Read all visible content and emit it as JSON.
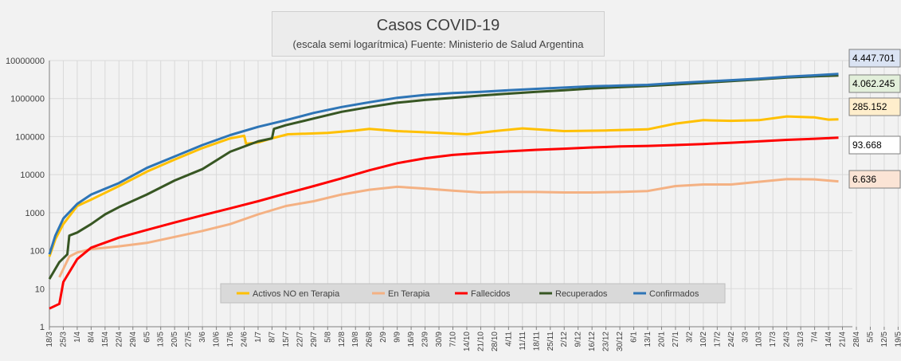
{
  "chart_data": {
    "type": "line",
    "title": "Casos COVID-19",
    "subtitle": "(escala semi logarítmica) Fuente: Ministerio de Salud Argentina",
    "yscale": "log",
    "ylim": [
      1,
      10000000
    ],
    "y_ticks": [
      "1",
      "10",
      "100",
      "1000",
      "10000",
      "100000",
      "1000000",
      "10000000"
    ],
    "x_ticks": [
      "18/3",
      "25/3",
      "1/4",
      "8/4",
      "15/4",
      "22/4",
      "29/4",
      "6/5",
      "13/5",
      "20/5",
      "27/5",
      "3/6",
      "10/6",
      "17/6",
      "24/6",
      "1/7",
      "8/7",
      "15/7",
      "22/7",
      "29/7",
      "5/8",
      "12/8",
      "19/8",
      "26/8",
      "2/9",
      "9/9",
      "16/9",
      "23/9",
      "30/9",
      "7/10",
      "14/10",
      "21/10",
      "28/10",
      "4/11",
      "11/11",
      "18/11",
      "25/11",
      "2/12",
      "9/12",
      "16/12",
      "23/12",
      "30/12",
      "6/1",
      "13/1",
      "20/1",
      "27/1",
      "3/2",
      "10/2",
      "17/2",
      "24/2",
      "3/3",
      "10/3",
      "17/3",
      "24/3",
      "31/3",
      "7/4",
      "14/4",
      "21/4",
      "28/4",
      "5/5",
      "12/5",
      "19/5",
      "26/5",
      "2/6",
      "9/6",
      "16/6",
      "23/6"
    ],
    "grid": true,
    "legend_position": "bottom-center",
    "series": [
      {
        "name": "Activos NO en Terapia",
        "color": "#ffc000",
        "last_label": "285.152",
        "label_bg": "#ffeecc",
        "points": [
          [
            0,
            70
          ],
          [
            3,
            200
          ],
          [
            7,
            500
          ],
          [
            14,
            1500
          ],
          [
            21,
            2200
          ],
          [
            35,
            5000
          ],
          [
            49,
            12000
          ],
          [
            63,
            25000
          ],
          [
            77,
            50000
          ],
          [
            91,
            90000
          ],
          [
            98,
            105000
          ],
          [
            99,
            65000
          ],
          [
            105,
            70000
          ],
          [
            112,
            90000
          ],
          [
            120,
            115000
          ],
          [
            140,
            125000
          ],
          [
            154,
            145000
          ],
          [
            161,
            160000
          ],
          [
            175,
            140000
          ],
          [
            196,
            125000
          ],
          [
            210,
            115000
          ],
          [
            224,
            140000
          ],
          [
            238,
            165000
          ],
          [
            259,
            140000
          ],
          [
            280,
            145000
          ],
          [
            301,
            155000
          ],
          [
            315,
            220000
          ],
          [
            329,
            270000
          ],
          [
            343,
            260000
          ],
          [
            357,
            270000
          ],
          [
            371,
            340000
          ],
          [
            385,
            320000
          ],
          [
            392,
            280000
          ],
          [
            397,
            285152
          ]
        ]
      },
      {
        "name": "En Terapia",
        "color": "#f4b183",
        "last_label": "6.636",
        "label_bg": "#fbe4d5",
        "points": [
          [
            5,
            20
          ],
          [
            10,
            70
          ],
          [
            14,
            90
          ],
          [
            21,
            110
          ],
          [
            35,
            130
          ],
          [
            49,
            160
          ],
          [
            63,
            230
          ],
          [
            77,
            330
          ],
          [
            91,
            500
          ],
          [
            105,
            900
          ],
          [
            119,
            1500
          ],
          [
            133,
            2000
          ],
          [
            147,
            3000
          ],
          [
            161,
            4000
          ],
          [
            175,
            4800
          ],
          [
            189,
            4300
          ],
          [
            203,
            3800
          ],
          [
            217,
            3400
          ],
          [
            231,
            3500
          ],
          [
            245,
            3500
          ],
          [
            259,
            3400
          ],
          [
            273,
            3400
          ],
          [
            287,
            3500
          ],
          [
            301,
            3700
          ],
          [
            315,
            5000
          ],
          [
            329,
            5500
          ],
          [
            343,
            5500
          ],
          [
            357,
            6500
          ],
          [
            371,
            7600
          ],
          [
            385,
            7500
          ],
          [
            397,
            6636
          ]
        ]
      },
      {
        "name": "Fallecidos",
        "color": "#ff0000",
        "last_label": "93.668",
        "label_bg": "#ffffff",
        "points": [
          [
            0,
            3
          ],
          [
            5,
            4
          ],
          [
            7,
            15
          ],
          [
            14,
            60
          ],
          [
            21,
            120
          ],
          [
            35,
            220
          ],
          [
            49,
            350
          ],
          [
            63,
            550
          ],
          [
            77,
            850
          ],
          [
            91,
            1300
          ],
          [
            105,
            2000
          ],
          [
            119,
            3200
          ],
          [
            133,
            5000
          ],
          [
            147,
            8000
          ],
          [
            161,
            13000
          ],
          [
            175,
            20000
          ],
          [
            189,
            27000
          ],
          [
            203,
            33000
          ],
          [
            217,
            37000
          ],
          [
            231,
            41000
          ],
          [
            245,
            45000
          ],
          [
            259,
            48000
          ],
          [
            273,
            52000
          ],
          [
            287,
            55000
          ],
          [
            301,
            57000
          ],
          [
            315,
            60000
          ],
          [
            329,
            64000
          ],
          [
            343,
            69000
          ],
          [
            357,
            75000
          ],
          [
            371,
            82000
          ],
          [
            385,
            88000
          ],
          [
            397,
            93668
          ]
        ]
      },
      {
        "name": "Recuperados",
        "color": "#375623",
        "last_label": "4.062.245",
        "label_bg": "#e2efda",
        "points": [
          [
            0,
            18
          ],
          [
            5,
            50
          ],
          [
            9,
            80
          ],
          [
            10,
            250
          ],
          [
            14,
            300
          ],
          [
            21,
            500
          ],
          [
            28,
            900
          ],
          [
            35,
            1400
          ],
          [
            49,
            3000
          ],
          [
            63,
            7000
          ],
          [
            77,
            14000
          ],
          [
            91,
            40000
          ],
          [
            105,
            75000
          ],
          [
            112,
            90000
          ],
          [
            113,
            160000
          ],
          [
            119,
            200000
          ],
          [
            133,
            300000
          ],
          [
            147,
            450000
          ],
          [
            161,
            600000
          ],
          [
            175,
            780000
          ],
          [
            189,
            920000
          ],
          [
            203,
            1050000
          ],
          [
            217,
            1200000
          ],
          [
            231,
            1350000
          ],
          [
            245,
            1500000
          ],
          [
            259,
            1650000
          ],
          [
            273,
            1850000
          ],
          [
            287,
            2000000
          ],
          [
            301,
            2150000
          ],
          [
            315,
            2350000
          ],
          [
            329,
            2600000
          ],
          [
            343,
            2900000
          ],
          [
            357,
            3200000
          ],
          [
            371,
            3600000
          ],
          [
            385,
            3850000
          ],
          [
            397,
            4062245
          ]
        ]
      },
      {
        "name": "Confirmados",
        "color": "#2e75b6",
        "last_label": "4.447.701",
        "label_bg": "#dae3f3",
        "points": [
          [
            0,
            80
          ],
          [
            3,
            250
          ],
          [
            7,
            700
          ],
          [
            14,
            1700
          ],
          [
            21,
            3000
          ],
          [
            35,
            6000
          ],
          [
            49,
            15000
          ],
          [
            63,
            30000
          ],
          [
            77,
            60000
          ],
          [
            91,
            110000
          ],
          [
            105,
            180000
          ],
          [
            119,
            270000
          ],
          [
            133,
            420000
          ],
          [
            147,
            600000
          ],
          [
            161,
            800000
          ],
          [
            175,
            1050000
          ],
          [
            189,
            1250000
          ],
          [
            203,
            1400000
          ],
          [
            217,
            1500000
          ],
          [
            231,
            1650000
          ],
          [
            245,
            1800000
          ],
          [
            259,
            1950000
          ],
          [
            273,
            2100000
          ],
          [
            287,
            2200000
          ],
          [
            301,
            2300000
          ],
          [
            315,
            2550000
          ],
          [
            329,
            2800000
          ],
          [
            343,
            3050000
          ],
          [
            357,
            3350000
          ],
          [
            371,
            3750000
          ],
          [
            385,
            4100000
          ],
          [
            397,
            4447701
          ]
        ]
      }
    ]
  }
}
